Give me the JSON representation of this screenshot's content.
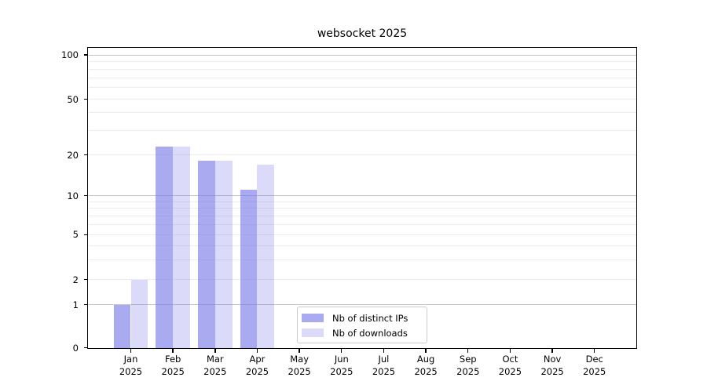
{
  "chart_data": {
    "type": "bar",
    "title": "websocket 2025",
    "categories": [
      "Jan 2025",
      "Feb 2025",
      "Mar 2025",
      "Apr 2025",
      "May 2025",
      "Jun 2025",
      "Jul 2025",
      "Aug 2025",
      "Sep 2025",
      "Oct 2025",
      "Nov 2025",
      "Dec 2025"
    ],
    "x_tick_labels": [
      {
        "month": "Jan",
        "year": "2025"
      },
      {
        "month": "Feb",
        "year": "2025"
      },
      {
        "month": "Mar",
        "year": "2025"
      },
      {
        "month": "Apr",
        "year": "2025"
      },
      {
        "month": "May",
        "year": "2025"
      },
      {
        "month": "Jun",
        "year": "2025"
      },
      {
        "month": "Jul",
        "year": "2025"
      },
      {
        "month": "Aug",
        "year": "2025"
      },
      {
        "month": "Sep",
        "year": "2025"
      },
      {
        "month": "Oct",
        "year": "2025"
      },
      {
        "month": "Nov",
        "year": "2025"
      },
      {
        "month": "Dec",
        "year": "2025"
      }
    ],
    "series": [
      {
        "name": "Nb of distinct IPs",
        "key": "distinct-ips",
        "fill": "rgba(124,124,232,0.65)",
        "values": [
          1,
          23,
          18,
          11,
          0,
          0,
          0,
          0,
          0,
          0,
          0,
          0
        ]
      },
      {
        "name": "Nb of downloads",
        "key": "downloads",
        "fill": "rgba(124,124,232,0.28)",
        "values": [
          2,
          23,
          18,
          17,
          0,
          0,
          0,
          0,
          0,
          0,
          0,
          0
        ]
      }
    ],
    "yscale": "symlog",
    "ylim": [
      0,
      115
    ],
    "y_major_ticks": [
      0,
      1,
      2,
      5,
      10,
      20,
      50,
      100
    ],
    "y_grid_emphasis": [
      1,
      10,
      100
    ],
    "y_minor_ticks": [
      3,
      4,
      6,
      7,
      8,
      9,
      30,
      40,
      60,
      70,
      80,
      90
    ],
    "grid": true,
    "legend_position": "lower center",
    "colors": {
      "bar_base": "#7c7ce8",
      "grid_major": "#c3c3c3",
      "grid_minor": "#ececec",
      "spine": "#000000",
      "text": "#000000",
      "legend_border": "#cccccc"
    }
  }
}
